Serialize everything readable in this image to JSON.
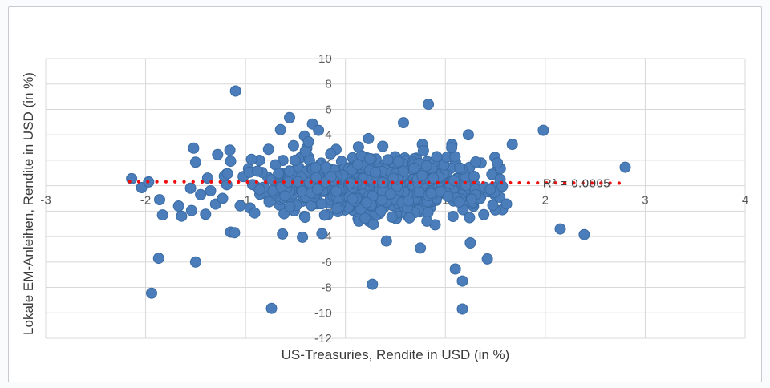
{
  "page": {
    "background": "#fafbfc",
    "card_border_color": "#c7cbcf"
  },
  "chart_data": {
    "type": "scatter",
    "title": "",
    "xlabel": "US-Treasuries, Rendite in USD (in %)",
    "ylabel": "Lokale EM-Anleihen, Rendite in USD (in %)",
    "xlim": [
      -3,
      4
    ],
    "ylim": [
      -12,
      10
    ],
    "x_ticks": [
      -3,
      -2,
      -1,
      0,
      1,
      2,
      3,
      4
    ],
    "x_tick_labels": [
      "-3",
      "-2",
      "-1",
      "0",
      "1",
      "2",
      "3",
      "4"
    ],
    "y_ticks": [
      10,
      8,
      6,
      4,
      2,
      0,
      -2,
      -4,
      -6,
      -8,
      -10,
      -12
    ],
    "y_tick_labels": [
      "10",
      "8",
      "6",
      "4",
      "2",
      "0",
      "-2",
      "-4",
      "-6",
      "-8",
      "-10",
      "-12"
    ],
    "grid": true,
    "legend": "none",
    "gridline_color": "#d8d8d8",
    "tick_label_color": "#595959",
    "axis_title_color": "#3b3b3b",
    "marker": {
      "shape": "circle",
      "fill": "#4a7db9",
      "edge": "#3a6ba3",
      "radius_px": 6.5
    },
    "trendline": {
      "style": "dotted",
      "color": "#ee0f0f",
      "x_start": -2.16,
      "y_start": 0.32,
      "x_end": 2.78,
      "y_end": 0.2,
      "label": "R² = 0.0005",
      "label_x": 2.3,
      "label_y": 0.3,
      "label_color": "#3f3f3f"
    },
    "outliers": [
      [
        -2.14,
        0.55
      ],
      [
        -2.04,
        -0.15
      ],
      [
        -1.97,
        0.3
      ],
      [
        -1.86,
        -1.1
      ],
      [
        -1.83,
        -2.3
      ],
      [
        -1.67,
        -1.6
      ],
      [
        -1.64,
        -2.4
      ],
      [
        -1.55,
        -0.2
      ],
      [
        -1.54,
        -1.95
      ],
      [
        -1.52,
        2.95
      ],
      [
        -1.5,
        1.85
      ],
      [
        -1.45,
        -0.7
      ],
      [
        -1.4,
        -2.25
      ],
      [
        -1.38,
        0.6
      ],
      [
        -1.35,
        -0.4
      ],
      [
        -1.3,
        -1.45
      ],
      [
        -1.28,
        2.45
      ],
      [
        -1.23,
        -1.0
      ],
      [
        -1.18,
        0.95
      ],
      [
        -1.15,
        -3.65
      ],
      [
        -1.1,
        7.45
      ],
      [
        0.83,
        6.4
      ],
      [
        -0.56,
        5.35
      ],
      [
        0.58,
        4.95
      ],
      [
        -0.33,
        4.85
      ],
      [
        -0.65,
        4.4
      ],
      [
        -0.27,
        4.35
      ],
      [
        1.98,
        4.35
      ],
      [
        1.23,
        4.0
      ],
      [
        -0.41,
        3.9
      ],
      [
        0.23,
        3.7
      ],
      [
        -0.37,
        3.45
      ],
      [
        1.67,
        3.25
      ],
      [
        0.77,
        3.25
      ],
      [
        -0.52,
        3.15
      ],
      [
        0.13,
        3.05
      ],
      [
        0.78,
        2.75
      ],
      [
        -1.94,
        -8.45
      ],
      [
        -1.87,
        -5.7
      ],
      [
        -1.5,
        -6.0
      ],
      [
        -0.74,
        -9.65
      ],
      [
        0.27,
        -7.75
      ],
      [
        1.17,
        -9.7
      ],
      [
        1.17,
        -7.5
      ],
      [
        1.1,
        -6.55
      ],
      [
        1.42,
        -5.75
      ],
      [
        1.25,
        -4.5
      ],
      [
        0.75,
        -4.9
      ],
      [
        0.41,
        -4.35
      ],
      [
        -0.43,
        -4.05
      ],
      [
        -0.63,
        -3.8
      ],
      [
        -1.11,
        -3.7
      ],
      [
        2.8,
        1.45
      ],
      [
        2.15,
        -3.4
      ],
      [
        2.39,
        -3.85
      ],
      [
        1.55,
        1.35
      ],
      [
        1.57,
        -0.05
      ],
      [
        1.45,
        -0.3
      ],
      [
        1.52,
        1.8
      ]
    ],
    "cloud": {
      "seed": 20,
      "clusters": [
        {
          "n": 600,
          "x_mean": 0.3,
          "x_sd": 0.55,
          "y_mean": -0.1,
          "y_sd": 1.1,
          "x_min": -1.42,
          "x_max": 1.58,
          "y_min": -2.8,
          "y_max": 2.3
        },
        {
          "n": 120,
          "x_mean": 0.25,
          "x_sd": 0.7,
          "y_mean": 0.0,
          "y_sd": 1.8,
          "x_min": -1.35,
          "x_max": 1.65,
          "y_min": -4.1,
          "y_max": 3.3
        }
      ]
    }
  }
}
